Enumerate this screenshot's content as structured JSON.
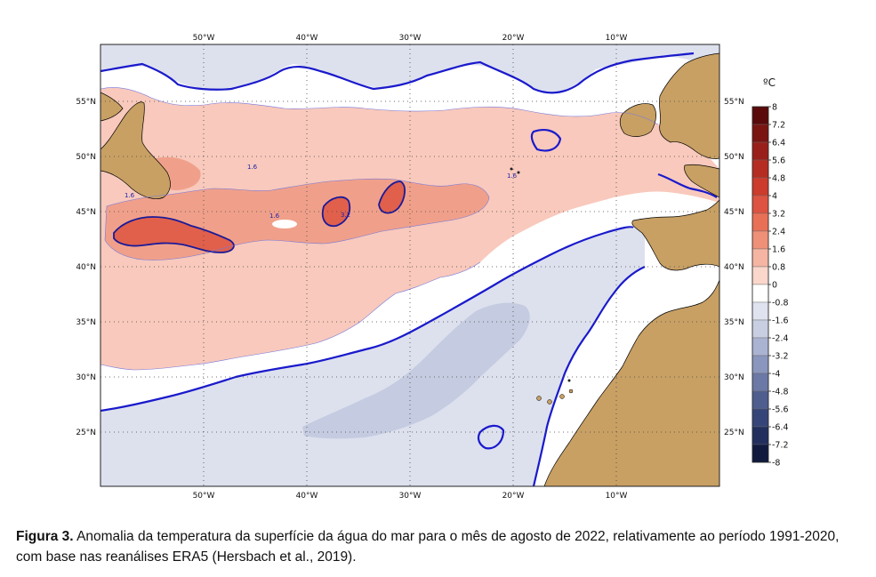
{
  "map": {
    "lon_ticks": [
      "50°W",
      "40°W",
      "30°W",
      "20°W",
      "10°W"
    ],
    "lat_ticks": [
      "55°N",
      "50°N",
      "45°N",
      "40°N",
      "35°N",
      "30°N",
      "25°N"
    ],
    "contour_labels": [
      "1.6",
      "1.6",
      "1.6",
      "3.2",
      "1.6"
    ]
  },
  "colorbar": {
    "unit": "ºC",
    "labels": [
      "8",
      "7.2",
      "6.4",
      "5.6",
      "4.8",
      "4",
      "3.2",
      "2.4",
      "1.6",
      "0.8",
      "0",
      "-0.8",
      "-1.6",
      "-2.4",
      "-3.2",
      "-4",
      "-4.8",
      "-5.6",
      "-6.4",
      "-7.2",
      "-8"
    ],
    "colors": [
      "#5a0a0a",
      "#7a1512",
      "#99201a",
      "#b52d22",
      "#cc3b2c",
      "#dd5240",
      "#e87057",
      "#ef9078",
      "#f5b5a2",
      "#fad6cb",
      "#ffffff",
      "#dfe3ef",
      "#c9cfe2",
      "#aab3d2",
      "#8a96bd",
      "#6c79a6",
      "#4f5e8e",
      "#364579",
      "#222f5e",
      "#111a3e"
    ]
  },
  "colors": {
    "land": "#c8a064",
    "ocean_zero": "#ffffff",
    "positive_light": "#f8c9bc",
    "positive_mid": "#f0a08a",
    "positive_strong": "#e0604c",
    "negative_light": "#dde1ee",
    "negative_mid": "#c5cbe0",
    "zero_contour": "#1a1acc"
  },
  "caption": {
    "label": "Figura 3.",
    "text": "Anomalia da temperatura da superfície da água do mar para o mês de agosto de 2022, relativamente ao período 1991-2020, com base nas reanálises ERA5 (Hersbach et al., 2019)."
  }
}
